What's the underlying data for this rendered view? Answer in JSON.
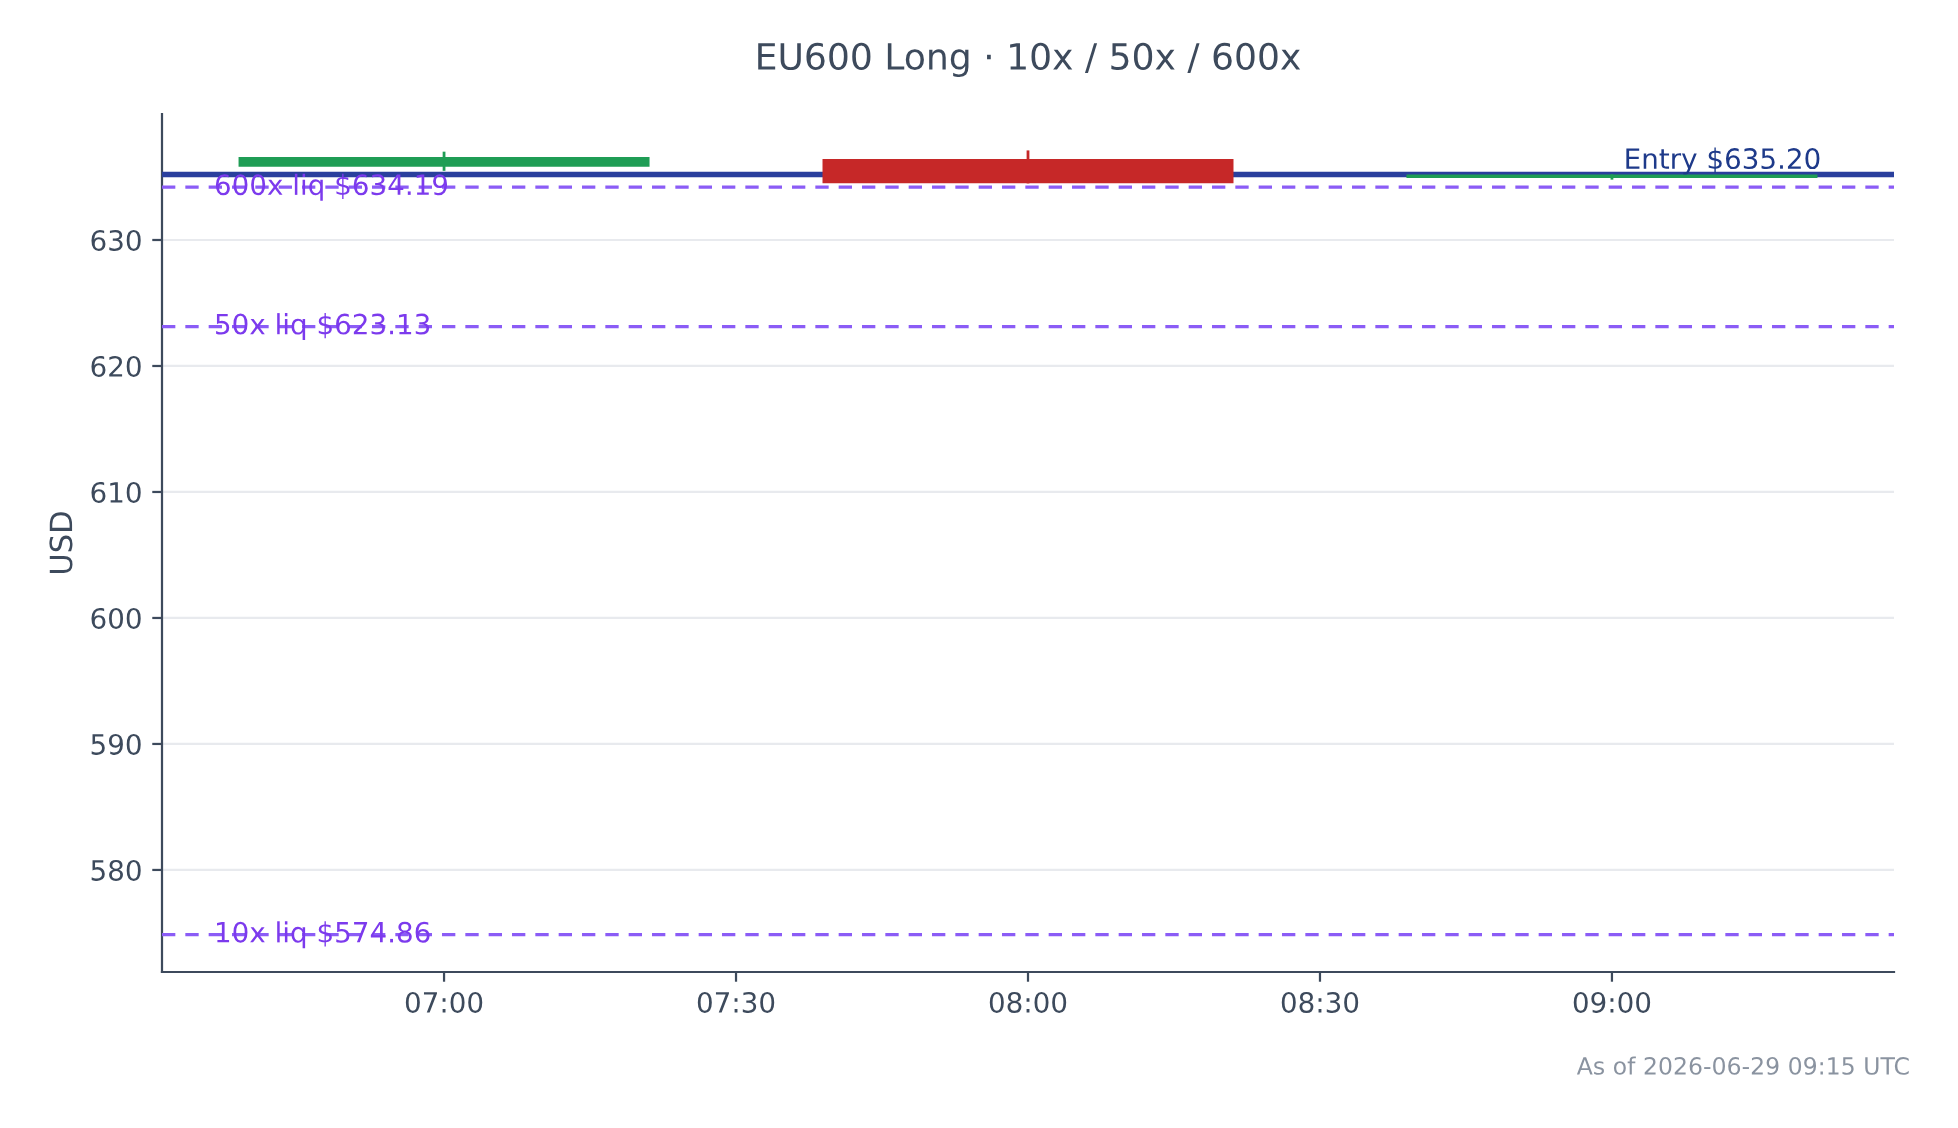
{
  "chart_data": {
    "type": "candlestick",
    "title": "EU600 Long · 10x / 50x / 600x",
    "ylabel": "USD",
    "x": [
      7.0,
      8.0,
      9.0
    ],
    "ohlc": [
      [
        635.9,
        636.9,
        635.6,
        636.5
      ],
      [
        636.35,
        637.0,
        634.6,
        634.6
      ],
      [
        635.0,
        635.1,
        634.9,
        635.1
      ]
    ],
    "colors": [
      "#1f9d55",
      "#c62828",
      "#1f9d55"
    ],
    "xlim": [
      6.517,
      9.483
    ],
    "xticks": [
      {
        "value": 7.0,
        "label": "07:00"
      },
      {
        "value": 7.5,
        "label": "07:30"
      },
      {
        "value": 8.0,
        "label": "08:00"
      },
      {
        "value": 8.5,
        "label": "08:30"
      },
      {
        "value": 9.0,
        "label": "09:00"
      }
    ],
    "ylim": [
      571.9,
      640.0
    ],
    "yticks": [
      580,
      590,
      600,
      610,
      620,
      630
    ],
    "grid": "y",
    "legend": false,
    "ref_lines": [
      {
        "axis": "y",
        "value": 635.2,
        "label": "Entry $635.20",
        "color": "#2a3f9d",
        "line_style": "solid"
      },
      {
        "axis": "y",
        "value": 634.19,
        "label": "600x liq $634.19",
        "color": "#8b5cf6",
        "line_style": "dashed"
      },
      {
        "axis": "y",
        "value": 623.13,
        "label": "50x liq $623.13",
        "color": "#8b5cf6",
        "line_style": "dashed"
      },
      {
        "axis": "y",
        "value": 574.86,
        "label": "10x liq $574.86",
        "color": "#8b5cf6",
        "line_style": "dashed"
      }
    ],
    "annotations": [
      "As of 2026-06-29 09:15 UTC"
    ]
  }
}
